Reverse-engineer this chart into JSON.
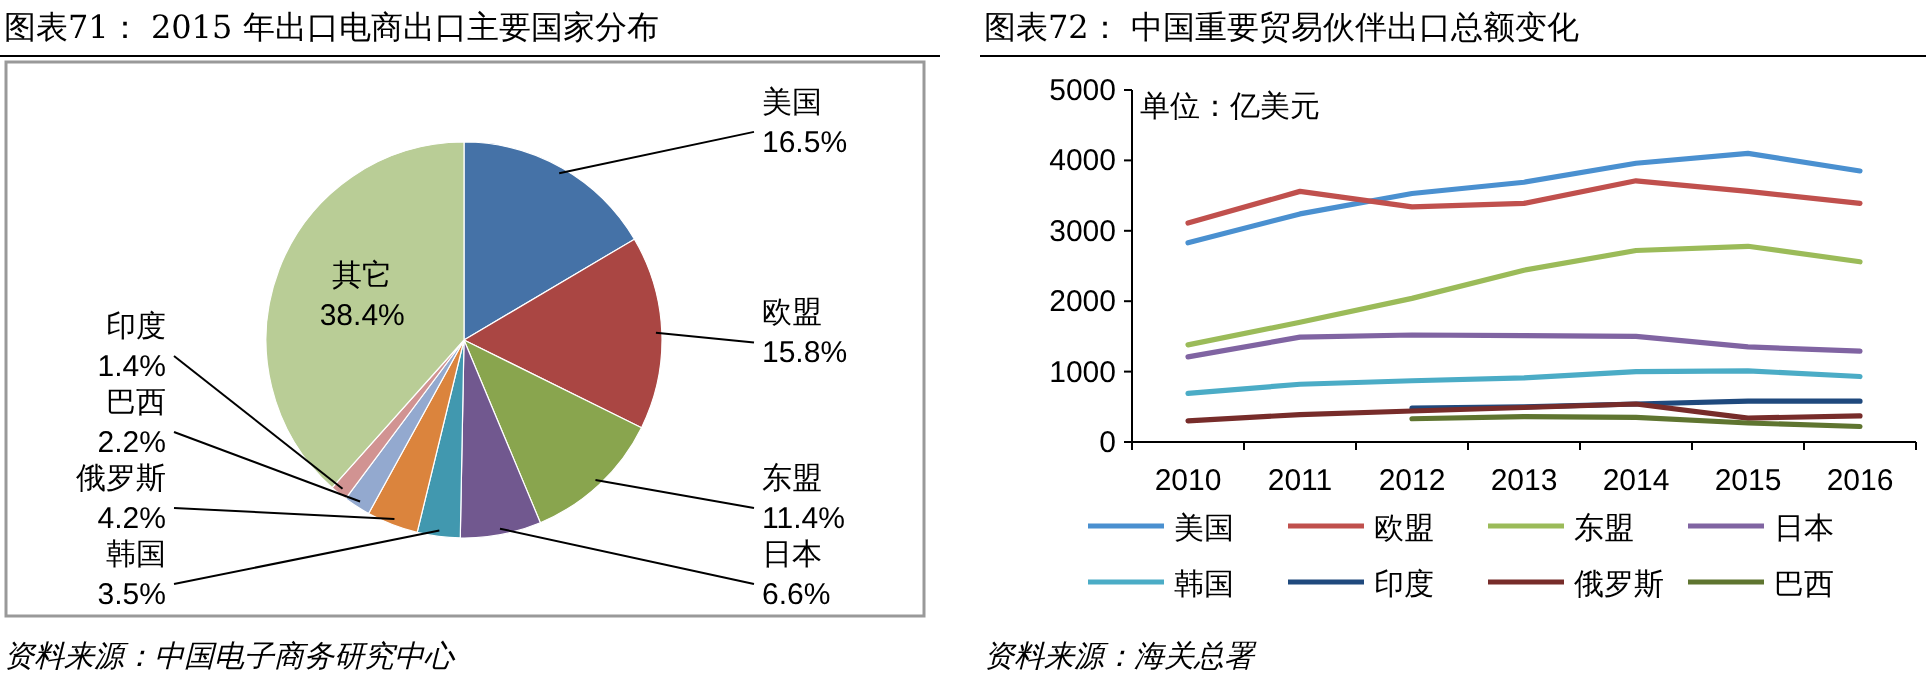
{
  "chart_data": [
    {
      "type": "pie",
      "title": "图表71：  2015 年出口电商出口主要国家分布",
      "categories": [
        "美国",
        "欧盟",
        "东盟",
        "日本",
        "韩国",
        "俄罗斯",
        "巴西",
        "印度",
        "其它"
      ],
      "values": [
        16.5,
        15.8,
        11.4,
        6.6,
        3.5,
        4.2,
        2.2,
        1.4,
        38.4
      ],
      "colors": [
        "#4572a7",
        "#aa4643",
        "#89a54e",
        "#71588f",
        "#4198af",
        "#db843d",
        "#93a9cf",
        "#d19392",
        "#b9cd96"
      ],
      "value_labels": [
        "16.5%",
        "15.8%",
        "11.4%",
        "6.6%",
        "3.5%",
        "4.2%",
        "2.2%",
        "1.4%",
        "38.4%"
      ],
      "annotations": [
        "资料来源：中国电子商务研究中心"
      ]
    },
    {
      "type": "line",
      "title": "图表72：  中国重要贸易伙伴出口总额变化",
      "ylabel": "单位：亿美元",
      "categories": [
        "2010",
        "2011",
        "2012",
        "2013",
        "2014",
        "2015",
        "2016"
      ],
      "series": [
        {
          "name": "美国",
          "color": "#4a90d0",
          "values": [
            2830,
            3240,
            3530,
            3690,
            3960,
            4100,
            3850
          ]
        },
        {
          "name": "欧盟",
          "color": "#c0504d",
          "values": [
            3110,
            3560,
            3340,
            3390,
            3710,
            3560,
            3390
          ]
        },
        {
          "name": "东盟",
          "color": "#9bbb59",
          "values": [
            1380,
            1700,
            2040,
            2440,
            2720,
            2780,
            2560
          ]
        },
        {
          "name": "日本",
          "color": "#8064a2",
          "values": [
            1210,
            1490,
            1520,
            1510,
            1500,
            1350,
            1290
          ]
        },
        {
          "name": "韩国",
          "color": "#4bacc6",
          "values": [
            690,
            820,
            870,
            910,
            1000,
            1010,
            930
          ]
        },
        {
          "name": "印度",
          "color": "#1f497d",
          "values": [
            null,
            null,
            480,
            500,
            540,
            580,
            580
          ]
        },
        {
          "name": "俄罗斯",
          "color": "#772c2a",
          "values": [
            300,
            390,
            440,
            490,
            540,
            340,
            370
          ]
        },
        {
          "name": "巴西",
          "color": "#5f7530",
          "values": [
            null,
            null,
            330,
            360,
            350,
            270,
            220
          ]
        }
      ],
      "ylim": [
        0,
        5000
      ],
      "yticks": [
        0,
        1000,
        2000,
        3000,
        4000,
        5000
      ],
      "legend": "bottom",
      "annotations": [
        "资料来源：海关总署"
      ]
    }
  ]
}
